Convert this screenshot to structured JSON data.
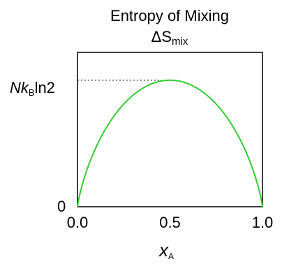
{
  "chart_data": {
    "type": "line",
    "title_line1": "Entropy of Mixing",
    "title_line2_main": "ΔS",
    "title_line2_sub": "mix",
    "ylabel_parts": {
      "italic": "Nk",
      "sub": "B",
      "rest": "ln2"
    },
    "ytick_zero": "0",
    "xtick_labels": [
      "0.0",
      "0.5",
      "1.0"
    ],
    "xtick_values": [
      0.0,
      0.5,
      1.0
    ],
    "xlabel_main": "x",
    "xlabel_sub": "A",
    "xlim": [
      0,
      1
    ],
    "ylim": [
      0,
      1.22
    ],
    "max_value": 1.0,
    "series": [
      {
        "color": "#33cc33",
        "function": "-(x*ln x + (1-x)*ln(1-x)) / ln2"
      }
    ],
    "reference_line": {
      "from_x": 0,
      "to_x": 0.5,
      "y": 1.0,
      "style": "dotted"
    },
    "grid": false,
    "legend": "none"
  }
}
